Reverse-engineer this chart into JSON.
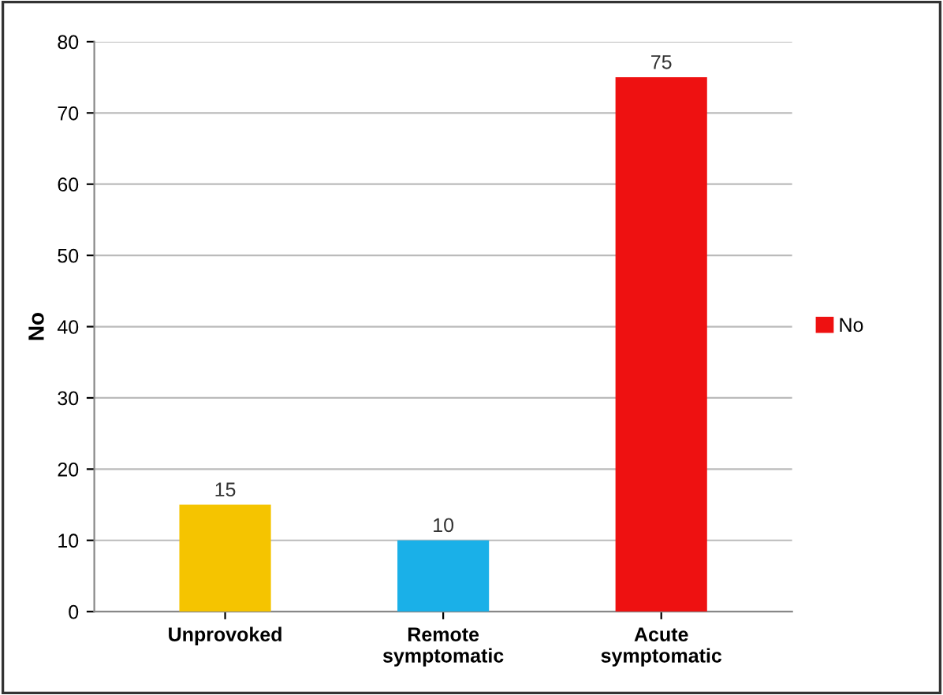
{
  "chart_data": {
    "type": "bar",
    "ylabel": "No",
    "categories": [
      "Unprovoked",
      "Remote\nsymptomatic",
      "Acute\nsymptomatic"
    ],
    "series": [
      {
        "name": "No",
        "color": "#ee1111",
        "colors": [
          "#f5c400",
          "#1ab0e8",
          "#ee1111"
        ],
        "values": [
          15,
          10,
          75
        ]
      }
    ],
    "ylim": [
      0,
      80
    ],
    "yticks": [
      0,
      10,
      20,
      30,
      40,
      50,
      60,
      70,
      80
    ],
    "grid": "y",
    "legend": "right",
    "data_labels": true
  }
}
